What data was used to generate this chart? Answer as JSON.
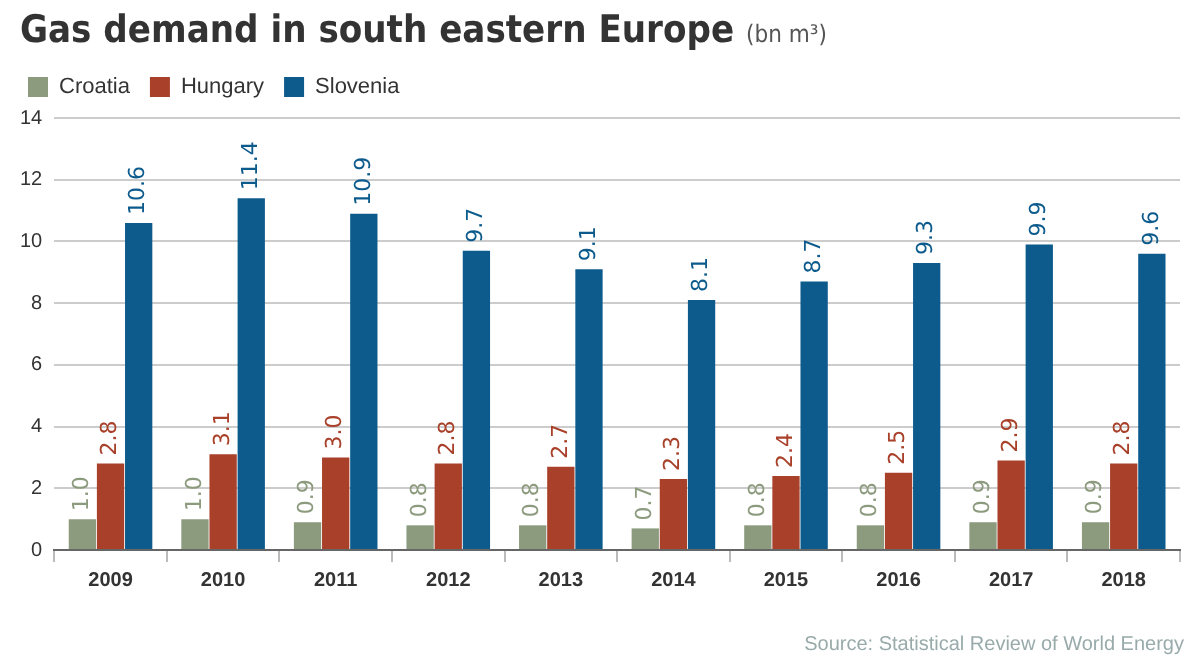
{
  "chart_data": {
    "type": "bar",
    "title": "Gas demand in south eastern Europe",
    "subtitle": "(bn m³)",
    "annotations": [
      "Source: Statistical Review of World Energy"
    ],
    "categories": [
      "2009",
      "2010",
      "2011",
      "2012",
      "2013",
      "2014",
      "2015",
      "2016",
      "2017",
      "2018"
    ],
    "series": [
      {
        "name": "Croatia",
        "color": "#8c9a7e",
        "values": [
          1.0,
          1.0,
          0.9,
          0.8,
          0.8,
          0.7,
          0.8,
          0.8,
          0.9,
          0.9
        ],
        "value_labels": [
          "1.0",
          "1.0",
          "0.9",
          "0.8",
          "0.8",
          "0.7",
          "0.8",
          "0.8",
          "0.9",
          "0.9"
        ]
      },
      {
        "name": "Hungary",
        "color": "#a8402a",
        "values": [
          2.8,
          3.1,
          3.0,
          2.8,
          2.7,
          2.3,
          2.4,
          2.5,
          2.9,
          2.8
        ],
        "value_labels": [
          "2.8",
          "3.1",
          "3.0",
          "2.8",
          "2.7",
          "2.3",
          "2.4",
          "2.5",
          "2.9",
          "2.8"
        ]
      },
      {
        "name": "Slovenia",
        "color": "#0d5b8c",
        "values": [
          10.6,
          11.4,
          10.9,
          9.7,
          9.1,
          8.1,
          8.7,
          9.3,
          9.9,
          9.6
        ],
        "value_labels": [
          "10.6",
          "11.4",
          "10.9",
          "9.7",
          "9.1",
          "8.1",
          "8.7",
          "9.3",
          "9.9",
          "9.6"
        ]
      }
    ],
    "ylim": [
      0,
      14
    ],
    "yticks": [
      0,
      2,
      4,
      6,
      8,
      10,
      12,
      14
    ],
    "grid": "y",
    "legend": "top left"
  }
}
